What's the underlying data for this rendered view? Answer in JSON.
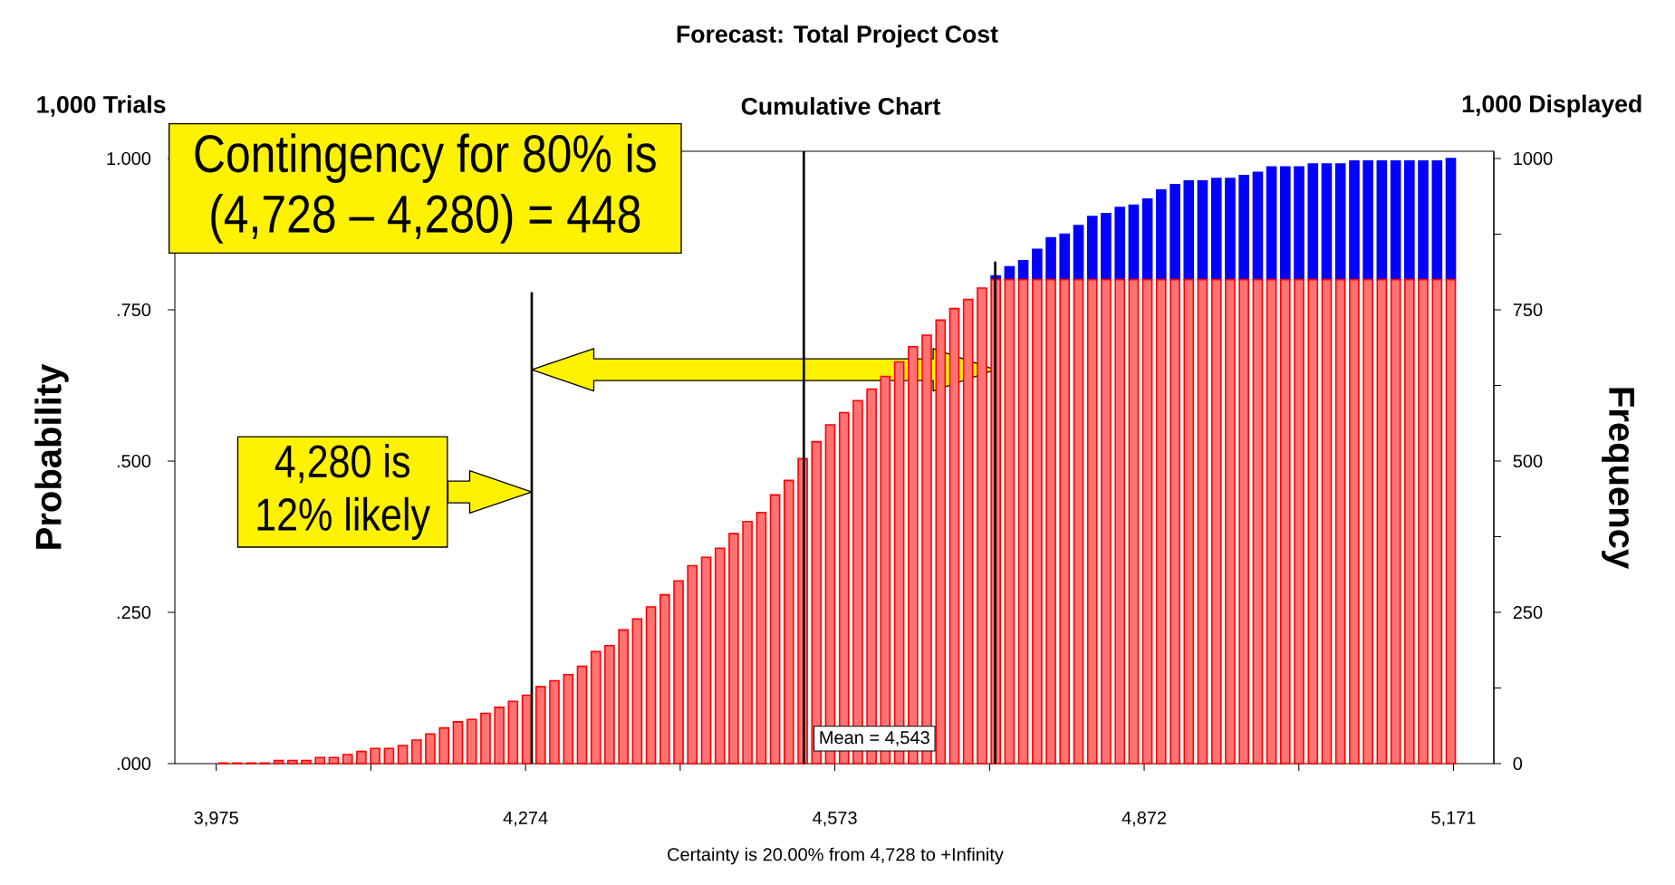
{
  "chart_data": {
    "type": "bar",
    "title": "Forecast: Total Project Cost",
    "xlabel": "Certainty is 20.00% from 4,728 to +Infinity",
    "ylabel": "Probability",
    "y2label": "Frequency",
    "annotations": [
      "1,000 Trials",
      "Cumulative Chart",
      "1,000 Displayed",
      "Contingency for 80% is (4,728 – 4,280) = 448",
      {
        "text": "4,280 is 12% likely",
        "x": 4280,
        "y": 0.449
      },
      {
        "text": "Mean = 4,543",
        "x": 4543
      }
    ],
    "x": [
      3982.0,
      3995.3,
      4008.7,
      4022.0,
      4035.3,
      4048.7,
      4062.0,
      4075.3,
      4088.6,
      4102.0,
      4115.3,
      4128.6,
      4142.0,
      4155.3,
      4168.6,
      4181.9,
      4195.3,
      4208.6,
      4221.9,
      4235.3,
      4248.6,
      4261.9,
      4275.3,
      4288.6,
      4301.9,
      4315.3,
      4328.6,
      4341.9,
      4355.2,
      4368.6,
      4381.9,
      4395.2,
      4408.6,
      4421.9,
      4435.2,
      4448.6,
      4461.9,
      4475.2,
      4488.5,
      4501.9,
      4515.2,
      4528.5,
      4541.9,
      4555.2,
      4568.5,
      4581.9,
      4595.2,
      4608.5,
      4621.8,
      4635.2,
      4648.5,
      4661.8,
      4675.2,
      4688.5,
      4701.8,
      4715.2,
      4728.5,
      4741.8,
      4755.1,
      4768.5,
      4781.8,
      4795.1,
      4808.5,
      4821.8,
      4835.1,
      4848.5,
      4861.8,
      4875.1,
      4888.4,
      4901.8,
      4915.1,
      4928.4,
      4941.8,
      4955.1,
      4968.4,
      4981.8,
      4995.1,
      5008.4,
      5021.7,
      5035.1,
      5048.4,
      5061.7,
      5075.1,
      5088.4,
      5101.7,
      5115.1,
      5128.4,
      5141.7,
      5155.1,
      5168.4
    ],
    "series": [
      {
        "color": "#ff0000",
        "values": [
          0.001,
          0.001,
          0.001,
          0.001,
          0.005,
          0.005,
          0.005,
          0.01,
          0.01,
          0.015,
          0.02,
          0.025,
          0.025,
          0.03,
          0.039,
          0.049,
          0.059,
          0.069,
          0.073,
          0.083,
          0.093,
          0.103,
          0.113,
          0.127,
          0.137,
          0.147,
          0.161,
          0.185,
          0.195,
          0.221,
          0.239,
          0.259,
          0.279,
          0.302,
          0.327,
          0.341,
          0.356,
          0.38,
          0.4,
          0.415,
          0.444,
          0.468,
          0.504,
          0.532,
          0.56,
          0.58,
          0.6,
          0.619,
          0.64,
          0.664,
          0.689,
          0.708,
          0.733,
          0.752,
          0.767,
          0.786,
          0.8,
          0.8,
          0.8,
          0.8,
          0.8,
          0.8,
          0.8,
          0.8,
          0.8,
          0.8,
          0.8,
          0.8,
          0.8,
          0.8,
          0.8,
          0.8,
          0.8,
          0.8,
          0.8,
          0.8,
          0.8,
          0.8,
          0.8,
          0.8,
          0.8,
          0.8,
          0.8,
          0.8,
          0.8,
          0.8,
          0.8,
          0.8,
          0.8,
          0.8
        ]
      },
      {
        "color": "#0000ff",
        "values": [
          null,
          null,
          null,
          null,
          null,
          null,
          null,
          null,
          null,
          null,
          null,
          null,
          null,
          null,
          null,
          null,
          null,
          null,
          null,
          null,
          null,
          null,
          null,
          null,
          null,
          null,
          null,
          null,
          null,
          null,
          null,
          null,
          null,
          null,
          null,
          null,
          null,
          null,
          null,
          null,
          null,
          null,
          null,
          null,
          null,
          null,
          null,
          null,
          null,
          null,
          null,
          null,
          null,
          null,
          null,
          null,
          0.006,
          0.021,
          0.031,
          0.05,
          0.069,
          0.075,
          0.089,
          0.104,
          0.109,
          0.119,
          0.123,
          0.133,
          0.148,
          0.157,
          0.163,
          0.163,
          0.167,
          0.167,
          0.172,
          0.177,
          0.186,
          0.186,
          0.186,
          0.191,
          0.191,
          0.191,
          0.196,
          0.196,
          0.196,
          0.196,
          0.196,
          0.196,
          0.196,
          0.2
        ]
      }
    ],
    "stacked": true,
    "xlim": [
      3935,
      5210
    ],
    "xticks": [
      {
        "value": 3975,
        "label": "3,975"
      },
      {
        "value": 4124.5,
        "label": null
      },
      {
        "value": 4274,
        "label": "4,274"
      },
      {
        "value": 4423.5,
        "label": null
      },
      {
        "value": 4573,
        "label": "4,573"
      },
      {
        "value": 4722.5,
        "label": null
      },
      {
        "value": 4872,
        "label": "4,872"
      },
      {
        "value": 5021.5,
        "label": null
      },
      {
        "value": 5171,
        "label": "5,171"
      }
    ],
    "ylim": [
      0,
      1.012
    ],
    "yticks": [
      {
        "value": 0,
        "label": ".000"
      },
      {
        "value": 0.25,
        "label": ".250"
      },
      {
        "value": 0.5,
        "label": ".500"
      },
      {
        "value": 0.75,
        "label": ".750"
      },
      {
        "value": 1,
        "label": "1.000"
      }
    ],
    "y2lim": [
      0,
      1012
    ],
    "y2ticks": [
      0,
      {
        "value": 125,
        "label": null
      },
      250,
      {
        "value": 375,
        "label": null
      },
      500,
      {
        "value": 625,
        "label": null
      },
      750,
      {
        "value": 875,
        "label": null
      },
      1000
    ],
    "ref_lines": [
      {
        "axis": "x",
        "value": 4280
      },
      {
        "axis": "x",
        "value": 4543
      },
      {
        "axis": "x",
        "value": 4728
      }
    ]
  }
}
